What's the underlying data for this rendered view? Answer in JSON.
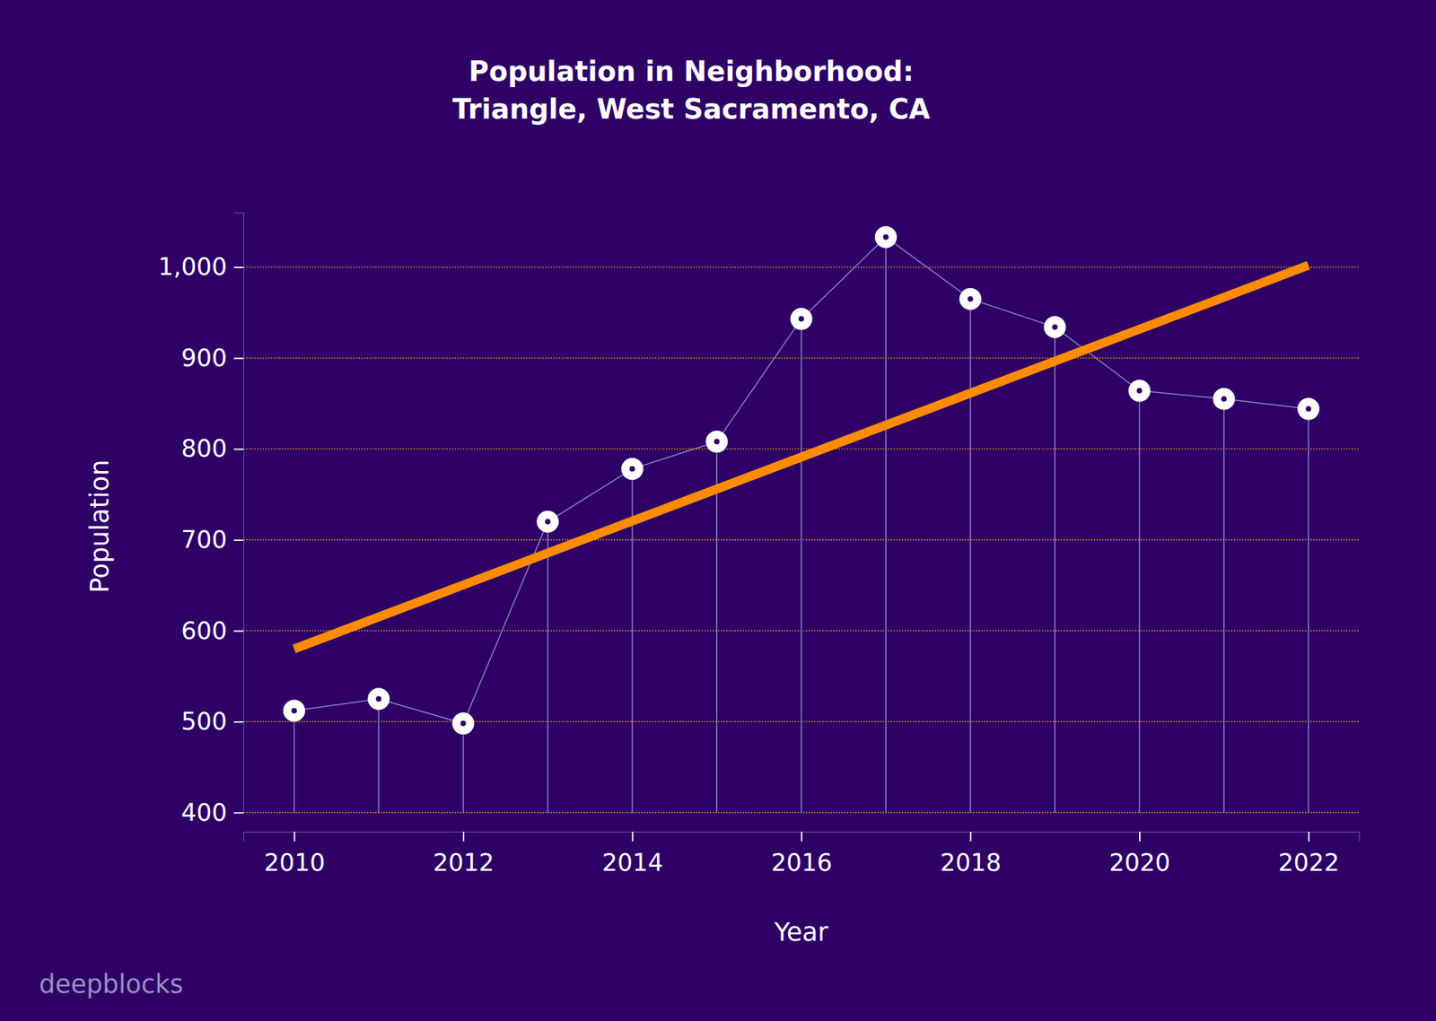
{
  "chart_data": {
    "type": "line",
    "title": "Population in Neighborhood:\nTriangle, West Sacramento, CA",
    "x_label": "Year",
    "y_label": "Population",
    "annotations": [
      "deepblocks"
    ],
    "x": [
      2010,
      2011,
      2012,
      2013,
      2014,
      2015,
      2016,
      2017,
      2018,
      2019,
      2020,
      2021,
      2022
    ],
    "series": [
      {
        "type": "line",
        "marker": "circle",
        "color": "#ffffff",
        "values": [
          512,
          525,
          498,
          720,
          778,
          808,
          943,
          1033,
          965,
          934,
          864,
          855,
          844
        ]
      },
      {
        "type": "line",
        "color": "#ff8c00",
        "line_style": "solid",
        "x": [
          2010,
          2022
        ],
        "values": [
          580,
          1002
        ]
      }
    ],
    "xlim": [
      2009.4,
      2022.6
    ],
    "xticks": [
      2010,
      2012,
      2014,
      2016,
      2018,
      2020,
      2022
    ],
    "ylim": [
      400,
      1060
    ],
    "yticks": [
      400,
      500,
      600,
      700,
      800,
      900,
      {
        "value": 1000,
        "label": "1,000"
      }
    ],
    "grid": true
  }
}
